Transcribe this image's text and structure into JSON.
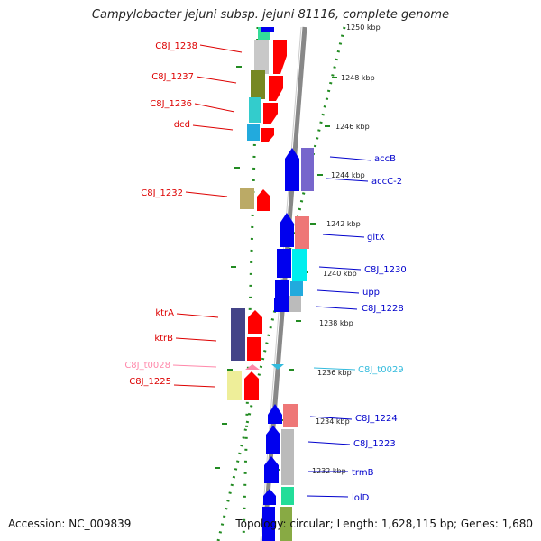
{
  "title": "Campylobacter jejuni subsp. jejuni 81116, complete genome",
  "footer": {
    "accession": "Accession: NC_009839",
    "topology": "Topology: circular; Length: 1,628,115 bp; Genes: 1,680"
  },
  "colors": {
    "backbone": "#888888",
    "ring_dots": "#228b22",
    "forward_label": "#dd0000",
    "reverse_label": "#0000cc",
    "forward_gene": "#ff0000",
    "reverse_gene": "#0000ee"
  },
  "kbp_ticks": [
    "1250 kbp",
    "1248 kbp",
    "1246 kbp",
    "1244 kbp",
    "1242 kbp",
    "1240 kbp",
    "1238 kbp",
    "1236 kbp",
    "1234 kbp",
    "1232 kbp"
  ],
  "left_labels": [
    {
      "text": "C8J_1238",
      "color": "#dd0000"
    },
    {
      "text": "C8J_1237",
      "color": "#dd0000"
    },
    {
      "text": "C8J_1236",
      "color": "#dd0000"
    },
    {
      "text": "dcd",
      "color": "#dd0000"
    },
    {
      "text": "C8J_1232",
      "color": "#dd0000"
    },
    {
      "text": "ktrA",
      "color": "#dd0000"
    },
    {
      "text": "ktrB",
      "color": "#dd0000"
    },
    {
      "text": "C8J_t0028",
      "color": "#ff88aa"
    },
    {
      "text": "C8J_1225",
      "color": "#dd0000"
    }
  ],
  "right_labels": [
    {
      "text": "accB",
      "color": "#0000cc"
    },
    {
      "text": "accC-2",
      "color": "#0000cc"
    },
    {
      "text": "gltX",
      "color": "#0000cc"
    },
    {
      "text": "C8J_1230",
      "color": "#0000cc"
    },
    {
      "text": "upp",
      "color": "#0000cc"
    },
    {
      "text": "C8J_1228",
      "color": "#0000cc"
    },
    {
      "text": "C8J_t0029",
      "color": "#33bbdd"
    },
    {
      "text": "C8J_1224",
      "color": "#0000cc"
    },
    {
      "text": "C8J_1223",
      "color": "#0000cc"
    },
    {
      "text": "trmB",
      "color": "#0000cc"
    },
    {
      "text": "lolD",
      "color": "#0000cc"
    }
  ]
}
